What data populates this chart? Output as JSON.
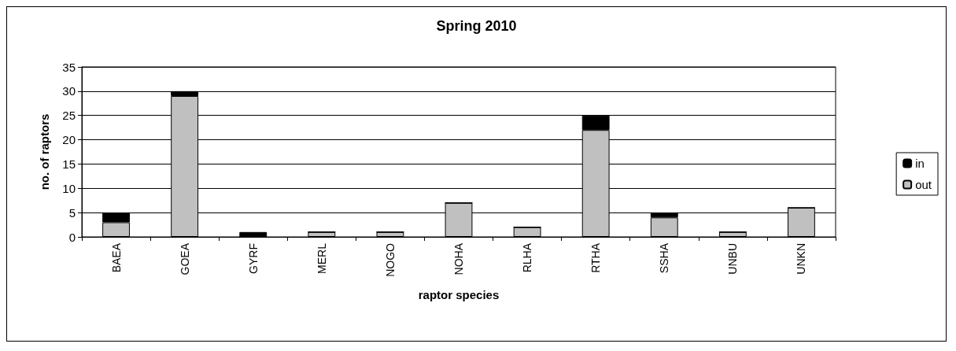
{
  "chart_data": {
    "type": "bar",
    "title": "Spring 2010",
    "xlabel": "raptor species",
    "ylabel": "no. of raptors",
    "categories": [
      "BAEA",
      "GOEA",
      "GYRF",
      "MERL",
      "NOGO",
      "NOHA",
      "RLHA",
      "RTHA",
      "SSHA",
      "UNBU",
      "UNKN"
    ],
    "stacked": true,
    "series": [
      {
        "name": "out",
        "color": "#c0c0c0",
        "values": [
          3,
          29,
          0,
          1,
          1,
          7,
          2,
          22,
          4,
          1,
          6
        ]
      },
      {
        "name": "in",
        "color": "#000000",
        "values": [
          2,
          1,
          1,
          0,
          0,
          0,
          0,
          3,
          1,
          0,
          0
        ]
      }
    ],
    "ylim": [
      0,
      35
    ],
    "yticks": [
      0,
      5,
      10,
      15,
      20,
      25,
      30,
      35
    ],
    "grid": "y",
    "legend": "right"
  }
}
